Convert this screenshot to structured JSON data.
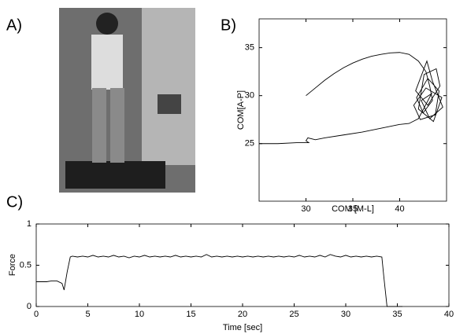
{
  "photo_label": "A)",
  "chart_data": [
    {
      "type": "line",
      "label": "B)",
      "xlabel": "COM [M-L]",
      "ylabel": "COM[A-P]",
      "xlim": [
        25,
        45
      ],
      "xticks": [
        30,
        35,
        40
      ],
      "ylim": [
        19,
        38
      ],
      "yticks": [
        25,
        30,
        35
      ],
      "color": "#000000",
      "x": [
        30,
        31,
        32,
        33,
        34,
        35,
        36,
        37,
        38,
        39,
        40,
        41,
        42,
        42.8,
        43.2,
        43.5,
        42.5,
        41.8,
        43,
        44.2,
        43.8,
        42.2,
        41.5,
        42.8,
        44.5,
        43.6,
        42,
        42.6,
        43.9,
        44.3,
        43,
        41.7,
        42.9,
        43.5,
        44.6,
        43.2,
        42.3,
        43.4,
        42,
        41,
        40,
        38,
        36,
        34,
        32,
        31,
        30.2,
        30,
        30.3,
        29,
        27,
        25
      ],
      "values": [
        30,
        30.8,
        31.6,
        32.3,
        32.9,
        33.4,
        33.8,
        34.1,
        34.3,
        34.45,
        34.5,
        34.3,
        33.6,
        32.5,
        31,
        29.5,
        28.2,
        29.8,
        31.8,
        30.5,
        28,
        27.5,
        29,
        30.8,
        29.8,
        27.3,
        28.6,
        32.2,
        32.8,
        31,
        29,
        30.5,
        33.6,
        31.5,
        28.8,
        27.6,
        29.5,
        30.2,
        27.6,
        27.1,
        27,
        26.6,
        26.2,
        25.9,
        25.6,
        25.4,
        25.6,
        25.3,
        25.1,
        25.1,
        25,
        25
      ]
    },
    {
      "type": "line",
      "label": "C)",
      "xlabel": "Time [sec]",
      "ylabel": "Force",
      "xlim": [
        0,
        40
      ],
      "xticks": [
        0,
        5,
        10,
        15,
        20,
        25,
        30,
        35,
        40
      ],
      "ylim": [
        0,
        1
      ],
      "yticks": [
        0,
        0.5,
        1
      ],
      "color": "#000000",
      "x": [
        0,
        0.5,
        1,
        1.5,
        2,
        2.5,
        2.7,
        3,
        3.3,
        3.5,
        4,
        4.5,
        5,
        5.5,
        6,
        6.5,
        7,
        7.5,
        8,
        8.5,
        9,
        9.5,
        10,
        10.5,
        11,
        11.5,
        12,
        12.5,
        13,
        13.5,
        14,
        14.5,
        15,
        15.5,
        16,
        16.5,
        17,
        17.5,
        18,
        18.5,
        19,
        19.5,
        20,
        20.5,
        21,
        21.5,
        22,
        22.5,
        23,
        23.5,
        24,
        24.5,
        25,
        25.5,
        26,
        26.5,
        27,
        27.5,
        28,
        28.5,
        29,
        29.5,
        30,
        30.5,
        31,
        31.5,
        32,
        32.5,
        33,
        33.5,
        33.7,
        34,
        34.5,
        35,
        35.5
      ],
      "values": [
        0.3,
        0.3,
        0.3,
        0.31,
        0.31,
        0.28,
        0.2,
        0.42,
        0.6,
        0.61,
        0.6,
        0.61,
        0.6,
        0.62,
        0.6,
        0.61,
        0.6,
        0.62,
        0.6,
        0.61,
        0.59,
        0.61,
        0.6,
        0.62,
        0.6,
        0.61,
        0.6,
        0.61,
        0.6,
        0.62,
        0.6,
        0.61,
        0.6,
        0.61,
        0.6,
        0.63,
        0.6,
        0.61,
        0.6,
        0.61,
        0.6,
        0.61,
        0.6,
        0.61,
        0.6,
        0.61,
        0.6,
        0.61,
        0.6,
        0.61,
        0.6,
        0.61,
        0.6,
        0.62,
        0.6,
        0.61,
        0.6,
        0.62,
        0.6,
        0.63,
        0.61,
        0.6,
        0.62,
        0.6,
        0.61,
        0.6,
        0.61,
        0.6,
        0.61,
        0.6,
        0.35,
        0,
        0,
        0,
        0
      ]
    }
  ]
}
